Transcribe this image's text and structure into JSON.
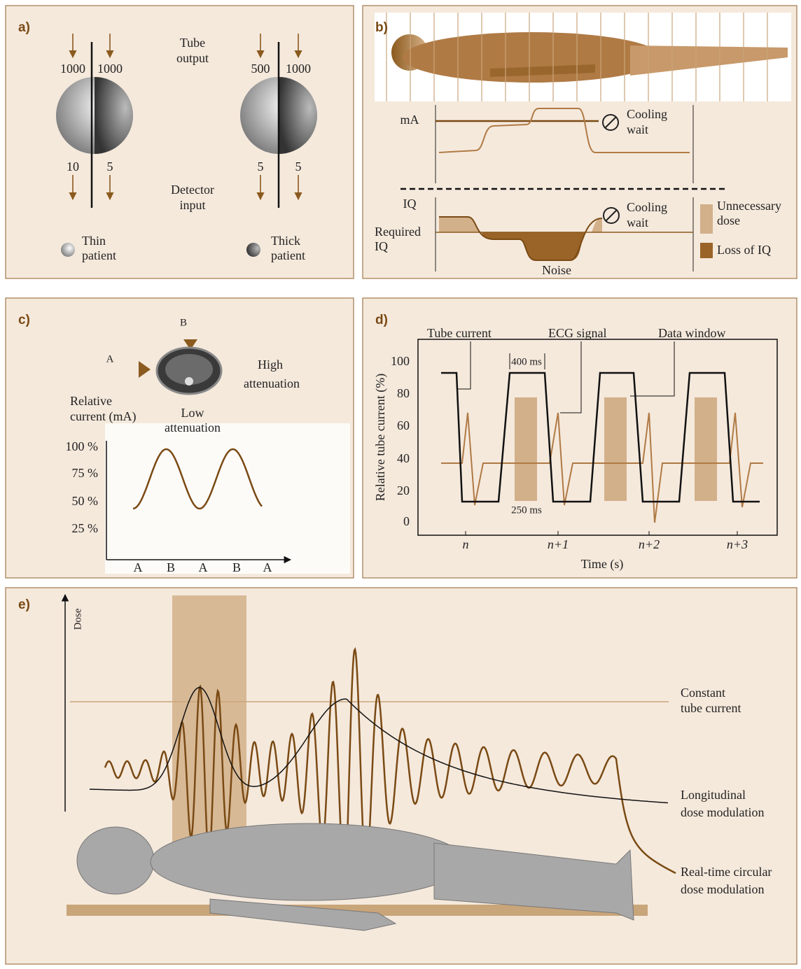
{
  "a": {
    "label": "a)",
    "tube_output": [
      "Tube",
      "output"
    ],
    "detector_input": [
      "Detector",
      "input"
    ],
    "thin": {
      "in": [
        "1000",
        "1000"
      ],
      "out": [
        "10",
        "5"
      ],
      "caption": [
        "Thin",
        "patient"
      ]
    },
    "thick": {
      "in": [
        "500",
        "1000"
      ],
      "out": [
        "5",
        "5"
      ],
      "caption": [
        "Thick",
        "patient"
      ]
    }
  },
  "b": {
    "label": "b)",
    "ma": "mA",
    "cooling_wait_top": [
      "Cooling",
      "wait"
    ],
    "iq": "IQ",
    "required_iq": [
      "Required",
      "IQ"
    ],
    "cooling_wait_bottom": [
      "Cooling",
      "wait"
    ],
    "noise": "Noise",
    "legend": [
      [
        "Unnecessary",
        "dose"
      ],
      [
        "Loss of IQ"
      ]
    ]
  },
  "c": {
    "label": "c)",
    "arrow_a": "A",
    "arrow_b": "B",
    "high_attenuation": [
      "High",
      "attenuation"
    ],
    "low_attenuation": [
      "Low",
      "attenuation"
    ],
    "y_label": [
      "Relative",
      "current (mA)"
    ],
    "yticks": [
      "100 %",
      "75 %",
      "50 %",
      "25 %"
    ],
    "xticks": [
      "A",
      "B",
      "A",
      "B",
      "A"
    ]
  },
  "d": {
    "label": "d)",
    "tube_current": "Tube current",
    "ecg_signal": "ECG signal",
    "data_window": "Data window",
    "duration_400": "400 ms",
    "duration_250": "250 ms",
    "y_label": "Relative tube current (%)",
    "yticks": [
      "100",
      "80",
      "60",
      "40",
      "20",
      "0"
    ],
    "xticks": [
      "n",
      "n+1",
      "n+2",
      "n+3"
    ],
    "x_label": "Time (s)"
  },
  "e": {
    "label": "e)",
    "y_label": "Dose",
    "constant": [
      "Constant",
      "tube current"
    ],
    "longitudinal": [
      "Longitudinal",
      "dose modulation"
    ],
    "realtime": [
      "Real-time circular",
      "dose modulation"
    ]
  }
}
